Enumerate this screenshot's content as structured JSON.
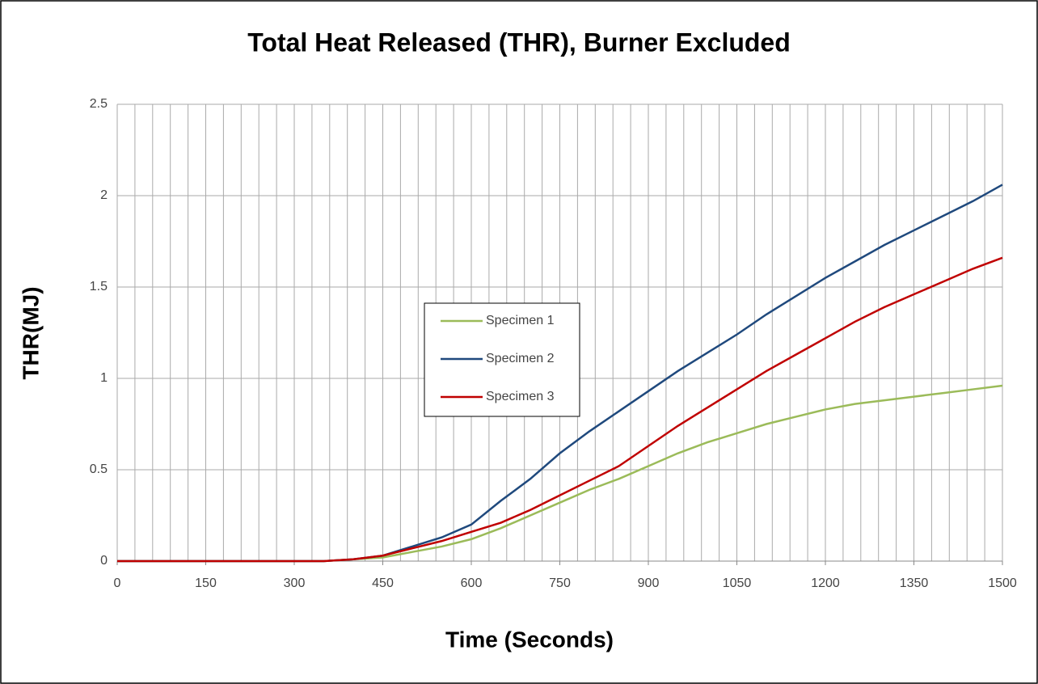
{
  "chart_data": {
    "type": "line",
    "title": "Total Heat Released (THR), Burner Excluded",
    "x_label": "Time (Seconds)",
    "y_label": "THR(MJ)",
    "x": [
      0,
      50,
      100,
      150,
      200,
      250,
      300,
      350,
      400,
      450,
      500,
      550,
      600,
      650,
      700,
      750,
      800,
      850,
      900,
      950,
      1000,
      1050,
      1100,
      1150,
      1200,
      1250,
      1300,
      1350,
      1400,
      1450,
      1500
    ],
    "series": [
      {
        "name": "Specimen 1",
        "color": "#9bbb59",
        "values": [
          0,
          0,
          0,
          0,
          0,
          0,
          0,
          0,
          0.01,
          0.02,
          0.05,
          0.08,
          0.12,
          0.18,
          0.25,
          0.32,
          0.39,
          0.45,
          0.52,
          0.59,
          0.65,
          0.7,
          0.75,
          0.79,
          0.83,
          0.86,
          0.88,
          0.9,
          0.92,
          0.94,
          0.96
        ]
      },
      {
        "name": "Specimen 2",
        "color": "#1f497d",
        "values": [
          0,
          0,
          0,
          0,
          0,
          0,
          0,
          0,
          0.01,
          0.03,
          0.08,
          0.13,
          0.2,
          0.33,
          0.45,
          0.59,
          0.71,
          0.82,
          0.93,
          1.04,
          1.14,
          1.24,
          1.35,
          1.45,
          1.55,
          1.64,
          1.73,
          1.81,
          1.89,
          1.97,
          2.06
        ]
      },
      {
        "name": "Specimen 3",
        "color": "#c00000",
        "values": [
          0,
          0,
          0,
          0,
          0,
          0,
          0,
          0,
          0.01,
          0.03,
          0.07,
          0.11,
          0.16,
          0.21,
          0.28,
          0.36,
          0.44,
          0.52,
          0.63,
          0.74,
          0.84,
          0.94,
          1.04,
          1.13,
          1.22,
          1.31,
          1.39,
          1.46,
          1.53,
          1.6,
          1.66
        ]
      }
    ],
    "xlim": [
      0,
      1500
    ],
    "ylim": [
      0,
      2.5
    ],
    "xticks": [
      0,
      150,
      300,
      450,
      600,
      750,
      900,
      1050,
      1200,
      1350,
      1500
    ],
    "yticks": [
      0,
      0.5,
      1,
      1.5,
      2,
      2.5
    ],
    "x_grid": [
      0,
      30,
      60,
      90,
      120,
      150,
      180,
      210,
      240,
      270,
      300,
      330,
      360,
      390,
      420,
      450,
      480,
      510,
      540,
      570,
      600,
      630,
      660,
      690,
      720,
      750,
      780,
      810,
      840,
      870,
      900,
      930,
      960,
      990,
      1020,
      1050,
      1080,
      1110,
      1140,
      1170,
      1200,
      1230,
      1260,
      1290,
      1320,
      1350,
      1380,
      1410,
      1440,
      1470,
      1500
    ],
    "grid": true,
    "legend_position": "center"
  }
}
